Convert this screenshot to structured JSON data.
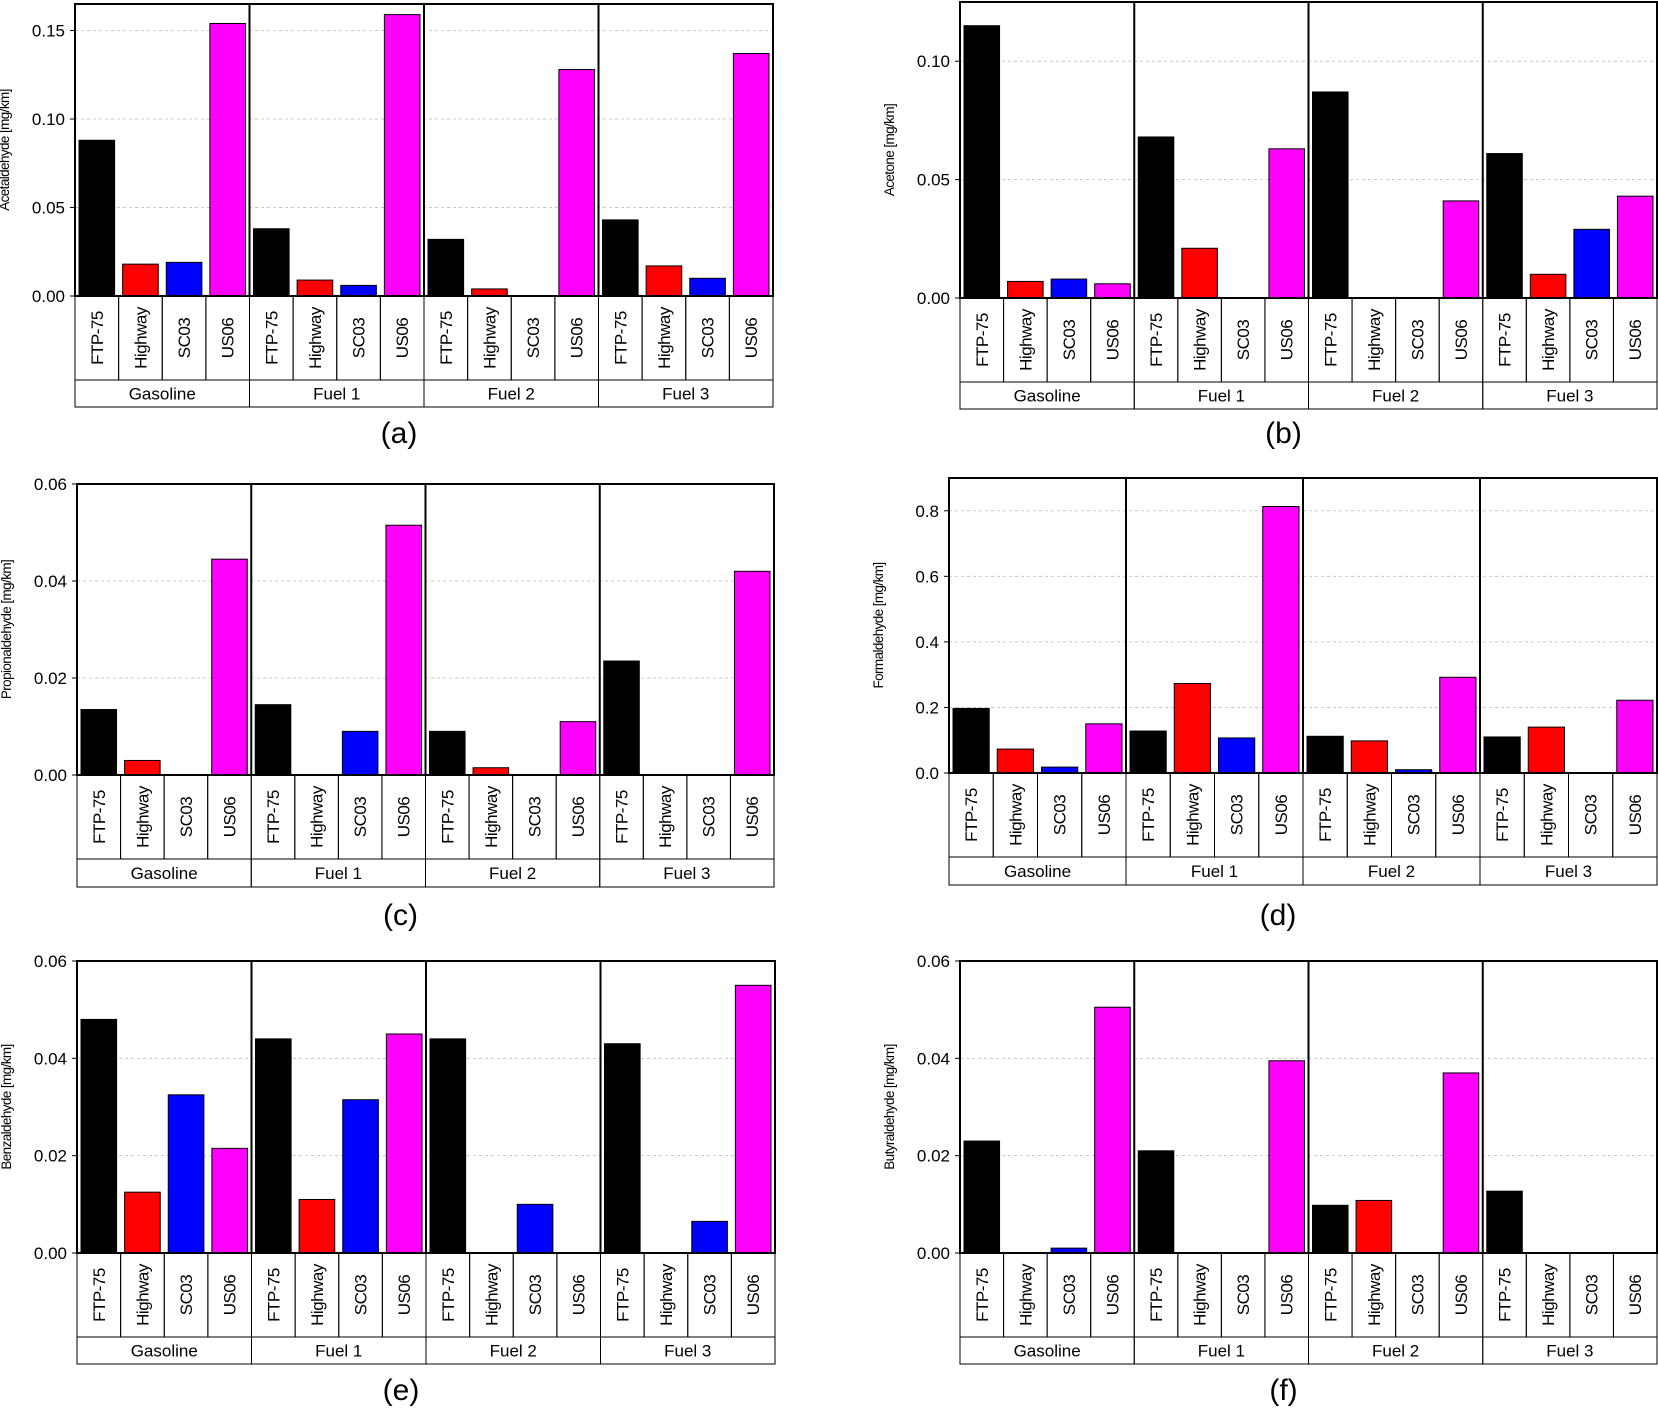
{
  "colors": {
    "FTP-75": "#000000",
    "Highway": "#ff0000",
    "SC03": "#0000ff",
    "US06": "#ff00ff",
    "grid": "#c8c8c8",
    "axis": "#000000"
  },
  "chart_data": [
    {
      "type": "bar",
      "panel_label": "(a)",
      "ylabel": "Acetaldehyde [mg/km]",
      "ylim": [
        0,
        0.165
      ],
      "yticks": [
        "0.00",
        "0.05",
        "0.10",
        "0.15"
      ],
      "ytick_values": [
        0,
        0.05,
        0.1,
        0.15
      ],
      "groups": [
        "Gasoline",
        "Fuel 1",
        "Fuel 2",
        "Fuel 3"
      ],
      "categories": [
        "FTP-75",
        "Highway",
        "SC03",
        "US06"
      ],
      "values": [
        [
          0.088,
          0.018,
          0.019,
          0.154
        ],
        [
          0.038,
          0.009,
          0.006,
          0.159
        ],
        [
          0.032,
          0.004,
          0,
          0.128
        ],
        [
          0.043,
          0.017,
          0.01,
          0.137
        ]
      ]
    },
    {
      "type": "bar",
      "panel_label": "(b)",
      "ylabel": "Acetone [mg/km]",
      "ylim": [
        0,
        0.125
      ],
      "yticks": [
        "0.00",
        "0.05",
        "0.10"
      ],
      "ytick_values": [
        0,
        0.05,
        0.1
      ],
      "groups": [
        "Gasoline",
        "Fuel 1",
        "Fuel 2",
        "Fuel 3"
      ],
      "categories": [
        "FTP-75",
        "Highway",
        "SC03",
        "US06"
      ],
      "values": [
        [
          0.115,
          0.007,
          0.008,
          0.006
        ],
        [
          0.068,
          0.021,
          0,
          0.063
        ],
        [
          0.087,
          0,
          0,
          0.041
        ],
        [
          0.061,
          0.01,
          0.029,
          0.043
        ]
      ]
    },
    {
      "type": "bar",
      "panel_label": "(c)",
      "ylabel": "Propionaldehyde [mg/km]",
      "ylim": [
        0,
        0.06
      ],
      "yticks": [
        "0.00",
        "0.02",
        "0.04",
        "0.06"
      ],
      "ytick_values": [
        0,
        0.02,
        0.04,
        0.06
      ],
      "groups": [
        "Gasoline",
        "Fuel 1",
        "Fuel 2",
        "Fuel 3"
      ],
      "categories": [
        "FTP-75",
        "Highway",
        "SC03",
        "US06"
      ],
      "values": [
        [
          0.0135,
          0.003,
          0,
          0.0445
        ],
        [
          0.0145,
          0,
          0.009,
          0.0515
        ],
        [
          0.009,
          0.0015,
          0,
          0.011
        ],
        [
          0.0235,
          0,
          0,
          0.042
        ]
      ]
    },
    {
      "type": "bar",
      "panel_label": "(d)",
      "ylabel": "Formaldehyde [mg/km]",
      "ylim": [
        0,
        0.9
      ],
      "yticks": [
        "0.0",
        "0.2",
        "0.4",
        "0.6",
        "0.8"
      ],
      "ytick_values": [
        0,
        0.2,
        0.4,
        0.6,
        0.8
      ],
      "groups": [
        "Gasoline",
        "Fuel 1",
        "Fuel 2",
        "Fuel 3"
      ],
      "categories": [
        "FTP-75",
        "Highway",
        "SC03",
        "US06"
      ],
      "values": [
        [
          0.197,
          0.073,
          0.018,
          0.15
        ],
        [
          0.128,
          0.273,
          0.107,
          0.813
        ],
        [
          0.112,
          0.098,
          0.01,
          0.292
        ],
        [
          0.11,
          0.14,
          0,
          0.222
        ]
      ]
    },
    {
      "type": "bar",
      "panel_label": "(e)",
      "ylabel": "Benzaldehyde [mg/km]",
      "ylim": [
        0,
        0.06
      ],
      "yticks": [
        "0.00",
        "0.02",
        "0.04",
        "0.06"
      ],
      "ytick_values": [
        0,
        0.02,
        0.04,
        0.06
      ],
      "groups": [
        "Gasoline",
        "Fuel 1",
        "Fuel 2",
        "Fuel 3"
      ],
      "categories": [
        "FTP-75",
        "Highway",
        "SC03",
        "US06"
      ],
      "values": [
        [
          0.048,
          0.0125,
          0.0325,
          0.0215
        ],
        [
          0.044,
          0.011,
          0.0315,
          0.045
        ],
        [
          0.044,
          0,
          0.01,
          0
        ],
        [
          0.043,
          0,
          0.0065,
          0.055
        ]
      ]
    },
    {
      "type": "bar",
      "panel_label": "(f)",
      "ylabel": "Butyraldehyde [mg/km]",
      "ylim": [
        0,
        0.06
      ],
      "yticks": [
        "0.00",
        "0.02",
        "0.04",
        "0.06"
      ],
      "ytick_values": [
        0,
        0.02,
        0.04,
        0.06
      ],
      "groups": [
        "Gasoline",
        "Fuel 1",
        "Fuel 2",
        "Fuel 3"
      ],
      "categories": [
        "FTP-75",
        "Highway",
        "SC03",
        "US06"
      ],
      "values": [
        [
          0.023,
          0,
          0.001,
          0.0505
        ],
        [
          0.021,
          0,
          0,
          0.0395
        ],
        [
          0.0098,
          0.0108,
          0,
          0.037
        ],
        [
          0.0127,
          0,
          0,
          0
        ]
      ]
    }
  ]
}
